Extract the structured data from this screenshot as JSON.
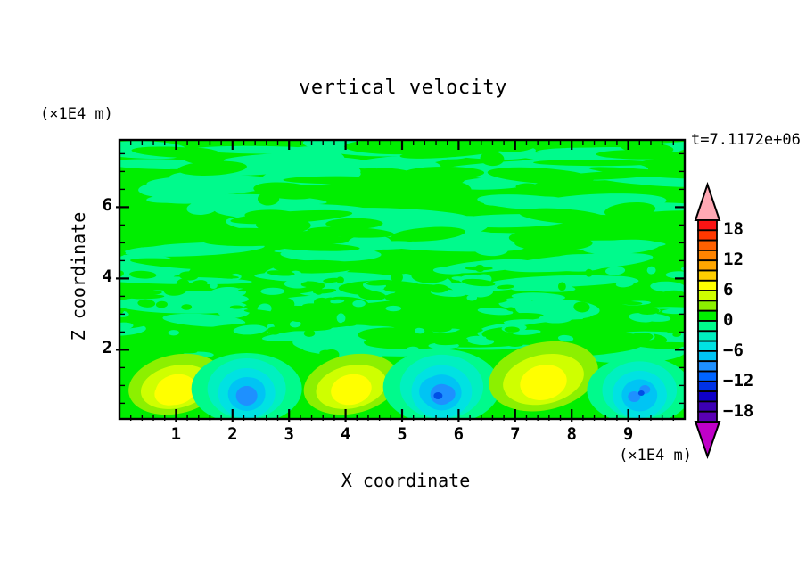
{
  "title": "vertical velocity",
  "timestamp": "t=7.1172e+06",
  "axes": {
    "x": {
      "label": "X coordinate",
      "unit": "(×1E4 m)",
      "tick_labels": [
        "1",
        "2",
        "3",
        "4",
        "5",
        "6",
        "7",
        "8",
        "9"
      ],
      "tick_values": [
        1,
        2,
        3,
        4,
        5,
        6,
        7,
        8,
        9
      ],
      "minor_step": 0.2,
      "range": [
        0,
        10
      ]
    },
    "z": {
      "label": "Z coordinate",
      "unit": "(×1E4 m)",
      "tick_labels": [
        "2",
        "4",
        "6"
      ],
      "tick_values": [
        2,
        4,
        6
      ],
      "minor_step": 0.5,
      "range": [
        0,
        7.8
      ]
    }
  },
  "colorbar": {
    "tick_labels": [
      "18",
      "12",
      "6",
      "0",
      "−6",
      "−12",
      "−18"
    ],
    "tick_values": [
      18,
      12,
      6,
      0,
      -6,
      -12,
      -18
    ],
    "level_min": -20,
    "level_max": 20,
    "level_step": 2,
    "segment_colors_top_to_bottom": [
      "#F91414",
      "#FF3800",
      "#FF6000",
      "#FF8400",
      "#FFA600",
      "#FFCE00",
      "#FFFF00",
      "#CFFF00",
      "#8CF000",
      "#00EE00",
      "#00FA8C",
      "#00F0C0",
      "#00E2E2",
      "#00C4F4",
      "#1E90FF",
      "#0064FF",
      "#0032E6",
      "#0F00C8",
      "#3C00B4",
      "#5A00B4"
    ],
    "over_arrow_color": "#FFA8B4",
    "under_arrow_color": "#C000C8"
  },
  "chart_data": {
    "type": "heatmap",
    "subtype": "filled-contour",
    "title": "vertical velocity",
    "xlabel": "X coordinate (×1E4 m)",
    "ylabel": "Z coordinate (×1E4 m)",
    "time_annotation": "t=7.1172e+06",
    "x_range": [
      0,
      10
    ],
    "z_range": [
      0,
      7.8
    ],
    "contour_interval": 2,
    "value_range_shown": [
      -20,
      20
    ],
    "background_field": "near-zero turbulence: wavy horizontal streaks alternating between the 0..2 band (green) and -2..0 band (spring green) above z≈2",
    "convective_cells": [
      {
        "kind": "updraft",
        "x": 1.0,
        "z": 0.6,
        "peak_value": 7,
        "core_shape": "single"
      },
      {
        "kind": "downdraft",
        "x": 2.25,
        "z": 0.5,
        "peak_value": -9,
        "core_shape": "single"
      },
      {
        "kind": "updraft",
        "x": 4.1,
        "z": 0.6,
        "peak_value": 7,
        "core_shape": "single"
      },
      {
        "kind": "downdraft",
        "x": 5.7,
        "z": 0.5,
        "peak_value": -11,
        "core_shape": "single"
      },
      {
        "kind": "updraft",
        "x": 7.5,
        "z": 0.7,
        "peak_value": 7,
        "core_shape": "single"
      },
      {
        "kind": "downdraft",
        "x": 9.2,
        "z": 0.5,
        "peak_value": -11,
        "core_shape": "split"
      }
    ],
    "plot_colors": {
      "positive_band": "#00EE00",
      "negative_band": "#00FA8C"
    }
  },
  "noise_seed": 1337
}
